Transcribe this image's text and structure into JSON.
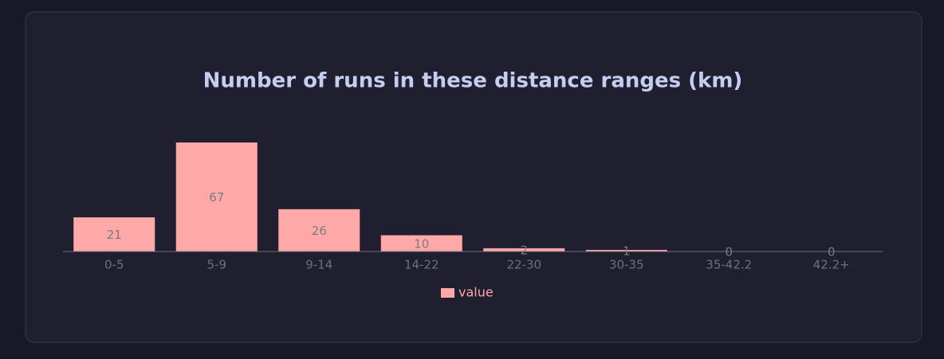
{
  "chart_data": {
    "type": "bar",
    "title": "Number of runs in these distance ranges (km)",
    "categories": [
      "0-5",
      "5-9",
      "9-14",
      "14-22",
      "22-30",
      "30-35",
      "35-42.2",
      "42.2+"
    ],
    "series": [
      {
        "name": "value",
        "color": "#ffa8a8",
        "values": [
          21,
          67,
          26,
          10,
          2,
          1,
          0,
          0
        ]
      }
    ]
  }
}
